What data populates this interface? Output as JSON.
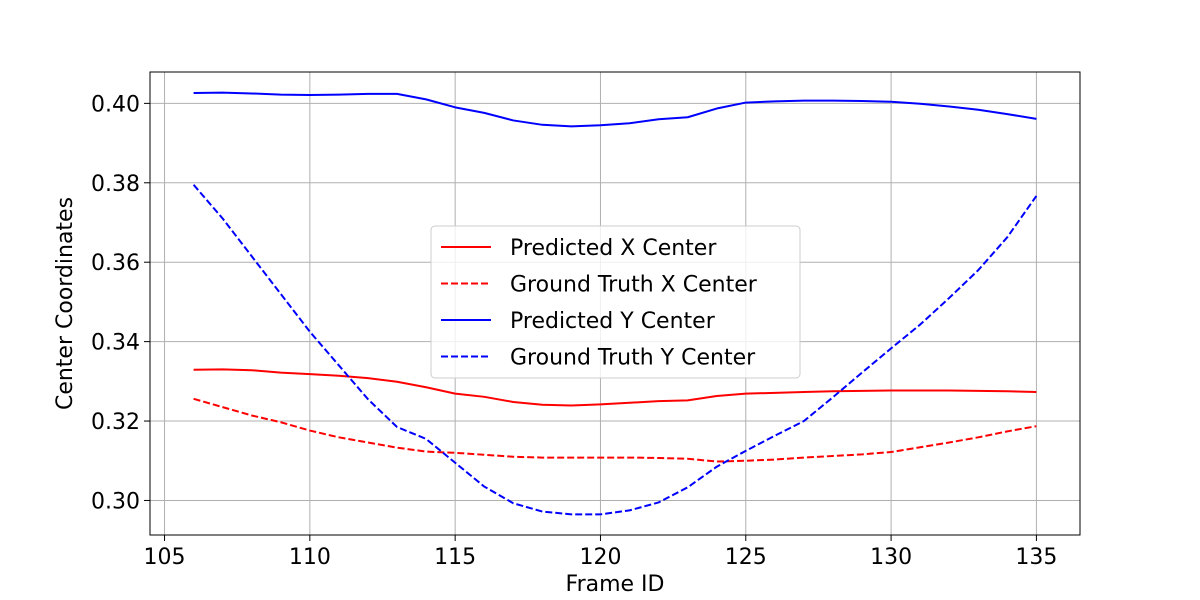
{
  "chart_data": {
    "type": "line",
    "title": "",
    "xlabel": "Frame ID",
    "ylabel": "Center Coordinates",
    "xlim": [
      104.5,
      136.5
    ],
    "ylim": [
      0.2913,
      0.4079
    ],
    "x_ticks": [
      105,
      110,
      115,
      120,
      125,
      130,
      135
    ],
    "y_ticks": [
      0.3,
      0.32,
      0.34,
      0.36,
      0.38,
      0.4
    ],
    "x_tick_labels": [
      "105",
      "110",
      "115",
      "120",
      "125",
      "130",
      "135"
    ],
    "y_tick_labels": [
      "0.30",
      "0.32",
      "0.34",
      "0.36",
      "0.38",
      "0.40"
    ],
    "grid": true,
    "legend_position": "center",
    "x": [
      106,
      107,
      108,
      109,
      110,
      111,
      112,
      113,
      114,
      115,
      116,
      117,
      118,
      119,
      120,
      121,
      122,
      123,
      124,
      125,
      126,
      127,
      128,
      129,
      130,
      131,
      132,
      133,
      134,
      135
    ],
    "series": [
      {
        "name": "Predicted X Center",
        "color": "#ff0000",
        "style": "solid",
        "values": [
          0.3329,
          0.333,
          0.3328,
          0.3322,
          0.3318,
          0.3314,
          0.3308,
          0.3299,
          0.3285,
          0.3269,
          0.3261,
          0.3248,
          0.3241,
          0.3239,
          0.3242,
          0.3246,
          0.325,
          0.3252,
          0.3263,
          0.3269,
          0.3271,
          0.3273,
          0.3275,
          0.3276,
          0.3277,
          0.3277,
          0.3277,
          0.3276,
          0.3275,
          0.3273
        ]
      },
      {
        "name": "Ground Truth X Center",
        "color": "#ff0000",
        "style": "dashed",
        "values": [
          0.3256,
          0.3235,
          0.3214,
          0.3197,
          0.3176,
          0.3159,
          0.3146,
          0.3133,
          0.3123,
          0.312,
          0.3115,
          0.311,
          0.3108,
          0.3108,
          0.3108,
          0.3108,
          0.3107,
          0.3105,
          0.3098,
          0.31,
          0.3103,
          0.3108,
          0.3112,
          0.3116,
          0.3122,
          0.3134,
          0.3146,
          0.3159,
          0.3174,
          0.3187
        ]
      },
      {
        "name": "Predicted Y Center",
        "color": "#0000ff",
        "style": "solid",
        "values": [
          0.4026,
          0.4027,
          0.4025,
          0.4022,
          0.4021,
          0.4022,
          0.4024,
          0.4024,
          0.401,
          0.399,
          0.3976,
          0.3957,
          0.3946,
          0.3942,
          0.3945,
          0.395,
          0.396,
          0.3965,
          0.3987,
          0.4002,
          0.4005,
          0.4007,
          0.4007,
          0.4006,
          0.4004,
          0.3999,
          0.3992,
          0.3984,
          0.3973,
          0.3961
        ]
      },
      {
        "name": "Ground Truth Y Center",
        "color": "#0000ff",
        "style": "dashed",
        "values": [
          0.3795,
          0.371,
          0.3615,
          0.352,
          0.3425,
          0.334,
          0.3255,
          0.3185,
          0.3155,
          0.3095,
          0.3035,
          0.2993,
          0.2972,
          0.2965,
          0.2965,
          0.2975,
          0.2995,
          0.3033,
          0.3085,
          0.3125,
          0.3163,
          0.32,
          0.326,
          0.3322,
          0.3383,
          0.3443,
          0.351,
          0.358,
          0.3663,
          0.3767
        ]
      }
    ]
  }
}
